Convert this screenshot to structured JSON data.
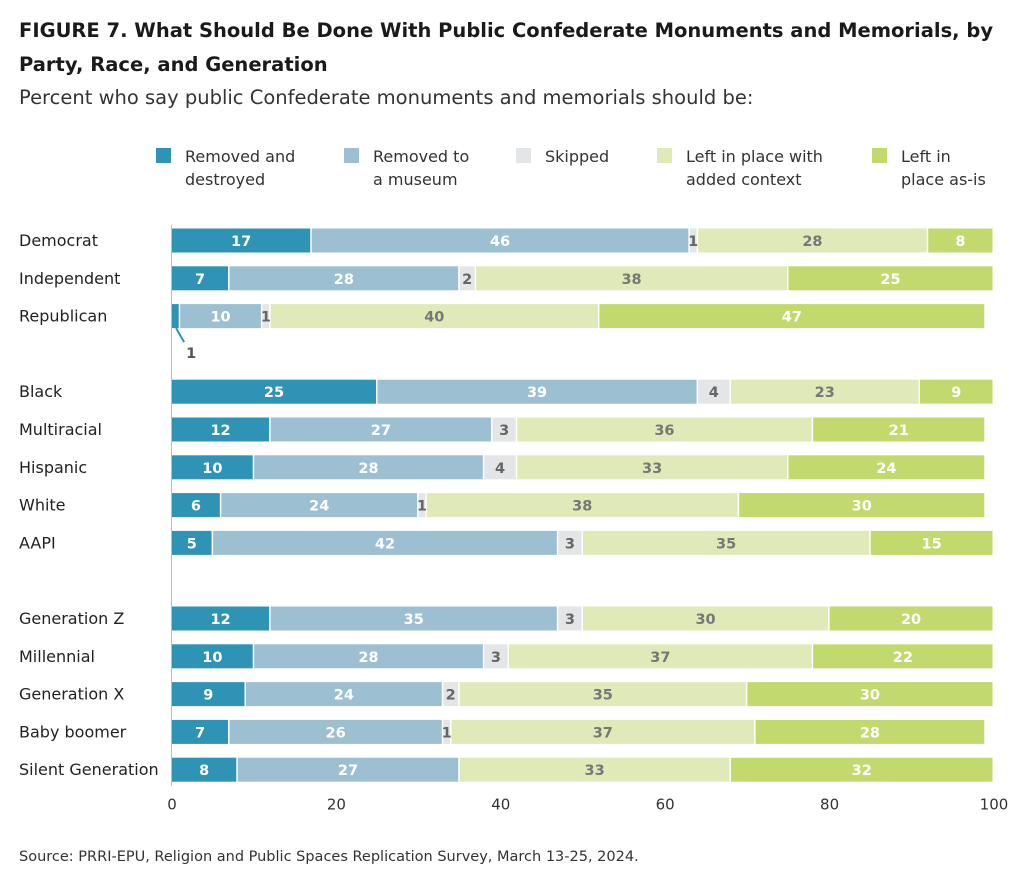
{
  "title": "FIGURE 7.  What Should Be Done With Public Confederate Monuments and Memorials, by Party, Race, and Generation",
  "subtitle": "Percent who say public Confederate monuments and memorials should be:",
  "source": "Source: PRRI-EPU, Religion and Public Spaces Replication Survey, March 13-25, 2024.",
  "chart_data": {
    "type": "bar",
    "orientation": "horizontal",
    "stacked": true,
    "xlim": [
      0,
      100
    ],
    "xticks": [
      "0",
      "20",
      "40",
      "60",
      "80",
      "100"
    ],
    "legend_placement": "top",
    "grid": false,
    "series": [
      {
        "name": "Removed and destroyed",
        "name_lines": [
          "Removed and",
          "destroyed"
        ],
        "color": "#2e93b4",
        "label_color": "#ffffff"
      },
      {
        "name": "Removed to a museum",
        "name_lines": [
          "Removed to",
          "a museum"
        ],
        "color": "#9dbfd2",
        "label_color": "#ffffff"
      },
      {
        "name": "Skipped",
        "name_lines": [
          "Skipped"
        ],
        "color": "#e3e5e6",
        "label_color": "#666666"
      },
      {
        "name": "Left in place with added context",
        "name_lines": [
          "Left in place with",
          "added context"
        ],
        "color": "#dfeab8",
        "label_color": "#777777"
      },
      {
        "name": "Left in place as-is",
        "name_lines": [
          "Left in",
          "place as-is"
        ],
        "color": "#c2d96d",
        "label_color": "#ffffff"
      }
    ],
    "groups": [
      {
        "rows": [
          {
            "category": "Democrat",
            "values": [
              17,
              46,
              1,
              28,
              8
            ]
          },
          {
            "category": "Independent",
            "values": [
              7,
              28,
              2,
              38,
              25
            ]
          },
          {
            "category": "Republican",
            "values": [
              1,
              10,
              1,
              40,
              47
            ],
            "callout": "1"
          }
        ]
      },
      {
        "rows": [
          {
            "category": "Black",
            "values": [
              25,
              39,
              4,
              23,
              9
            ]
          },
          {
            "category": "Multiracial",
            "values": [
              12,
              27,
              3,
              36,
              21
            ]
          },
          {
            "category": "Hispanic",
            "values": [
              10,
              28,
              4,
              33,
              24
            ]
          },
          {
            "category": "White",
            "values": [
              6,
              24,
              1,
              38,
              30
            ]
          },
          {
            "category": "AAPI",
            "values": [
              5,
              42,
              3,
              35,
              15
            ]
          }
        ]
      },
      {
        "rows": [
          {
            "category": "Generation Z",
            "values": [
              12,
              35,
              3,
              30,
              20
            ]
          },
          {
            "category": "Millennial",
            "values": [
              10,
              28,
              3,
              37,
              22
            ]
          },
          {
            "category": "Generation X",
            "values": [
              9,
              24,
              2,
              35,
              30
            ]
          },
          {
            "category": "Baby boomer",
            "values": [
              7,
              26,
              1,
              37,
              28
            ]
          },
          {
            "category": "Silent Generation",
            "values": [
              8,
              27,
              0,
              33,
              32
            ]
          }
        ]
      }
    ]
  }
}
